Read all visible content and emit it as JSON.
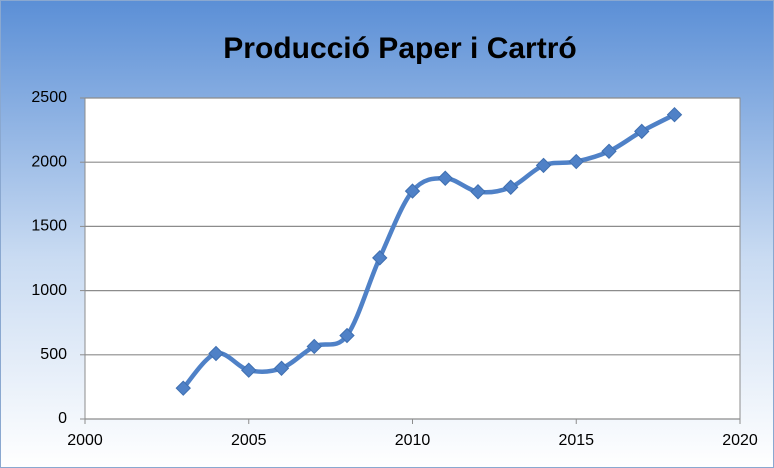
{
  "chart_data": {
    "type": "line",
    "title": "Producció Paper i Cartró",
    "x": [
      2003,
      2004,
      2005,
      2006,
      2007,
      2008,
      2009,
      2010,
      2011,
      2012,
      2013,
      2014,
      2015,
      2016,
      2017,
      2018
    ],
    "series": [
      {
        "name": "Producció Paper i Cartró",
        "color": "#4f81c7",
        "values": [
          240,
          510,
          380,
          395,
          565,
          650,
          1255,
          1775,
          1875,
          1770,
          1805,
          1975,
          2005,
          2085,
          2240,
          2370
        ]
      }
    ],
    "smooth": true,
    "xlim": [
      2000,
      2020
    ],
    "xticks": [
      2000,
      2005,
      2010,
      2015,
      2020
    ],
    "ylim": [
      0,
      2500
    ],
    "yticks": [
      0,
      500,
      1000,
      1500,
      2000,
      2500
    ],
    "grid": true
  }
}
